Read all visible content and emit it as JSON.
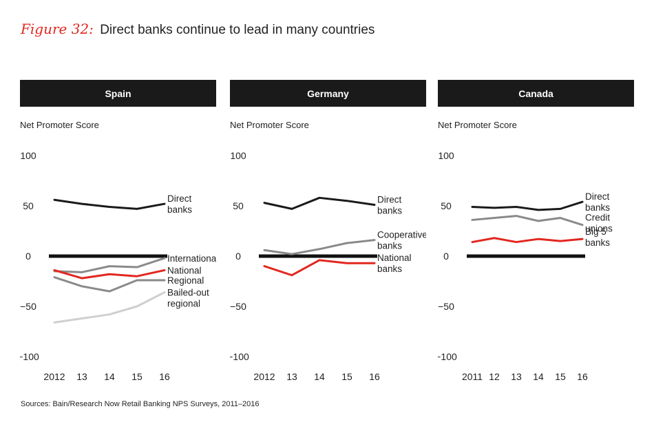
{
  "figure": {
    "label": "Figure 32:",
    "title": "Direct banks continue to lead in many countries",
    "source": "Sources: Bain/Research Now Retail Banking NPS Surveys, 2011–2016"
  },
  "colors": {
    "header_bg": "#1a1a1a",
    "dark": "#1a1a1a",
    "red": "#e2271f",
    "gray": "#8a8a8a",
    "lightgray": "#cfcfcf",
    "zero_line": "#111111"
  },
  "chart_data": [
    {
      "type": "line",
      "title": "Spain",
      "ylabel": "Net Promoter Score",
      "x": [
        "2012",
        "13",
        "14",
        "15",
        "16"
      ],
      "ylim": [
        -100,
        100
      ],
      "yticks": [
        "100",
        "50",
        "0",
        "−50",
        "−100"
      ],
      "ytick_values": [
        100,
        50,
        0,
        -50,
        -100
      ],
      "series": [
        {
          "name": "Direct banks",
          "label_lines": [
            "Direct",
            "banks"
          ],
          "color": "dark",
          "values": [
            56,
            52,
            49,
            47,
            52
          ]
        },
        {
          "name": "International",
          "label_lines": [
            "International"
          ],
          "color": "gray",
          "values": [
            -15,
            -16,
            -10,
            -11,
            -2
          ]
        },
        {
          "name": "National",
          "label_lines": [
            "National"
          ],
          "color": "red",
          "values": [
            -14,
            -22,
            -18,
            -20,
            -14
          ]
        },
        {
          "name": "Regional",
          "label_lines": [
            "Regional"
          ],
          "color": "gray",
          "values": [
            -21,
            -30,
            -35,
            -24,
            -24
          ]
        },
        {
          "name": "Bailed-out regional",
          "label_lines": [
            "Bailed-out",
            "regional"
          ],
          "color": "lightgray",
          "values": [
            -66,
            -62,
            -58,
            -50,
            -36
          ]
        }
      ]
    },
    {
      "type": "line",
      "title": "Germany",
      "ylabel": "Net Promoter Score",
      "x": [
        "2012",
        "13",
        "14",
        "15",
        "16"
      ],
      "ylim": [
        -100,
        100
      ],
      "yticks": [
        "100",
        "50",
        "0",
        "−50",
        "−100"
      ],
      "ytick_values": [
        100,
        50,
        0,
        -50,
        -100
      ],
      "series": [
        {
          "name": "Direct banks",
          "label_lines": [
            "Direct",
            "banks"
          ],
          "color": "dark",
          "values": [
            53,
            47,
            58,
            55,
            51
          ]
        },
        {
          "name": "Cooperative banks",
          "label_lines": [
            "Cooperative",
            "banks"
          ],
          "color": "gray",
          "values": [
            6,
            2,
            7,
            13,
            16
          ]
        },
        {
          "name": "National banks",
          "label_lines": [
            "National",
            "banks"
          ],
          "color": "red",
          "values": [
            -10,
            -19,
            -4,
            -7,
            -7
          ]
        }
      ]
    },
    {
      "type": "line",
      "title": "Canada",
      "ylabel": "Net Promoter Score",
      "x": [
        "2011",
        "12",
        "13",
        "14",
        "15",
        "16"
      ],
      "ylim": [
        -100,
        100
      ],
      "yticks": [
        "100",
        "50",
        "0",
        "−50",
        "−100"
      ],
      "ytick_values": [
        100,
        50,
        0,
        -50,
        -100
      ],
      "series": [
        {
          "name": "Direct banks",
          "label_lines": [
            "Direct",
            "banks"
          ],
          "color": "dark",
          "values": [
            49,
            48,
            49,
            46,
            47,
            54
          ]
        },
        {
          "name": "Credit unions",
          "label_lines": [
            "Credit",
            "unions"
          ],
          "color": "gray",
          "values": [
            36,
            38,
            40,
            35,
            38,
            31
          ]
        },
        {
          "name": "Big 5 banks",
          "label_lines": [
            "Big 5",
            "banks"
          ],
          "color": "red",
          "values": [
            14,
            18,
            14,
            17,
            15,
            17
          ]
        }
      ]
    }
  ]
}
